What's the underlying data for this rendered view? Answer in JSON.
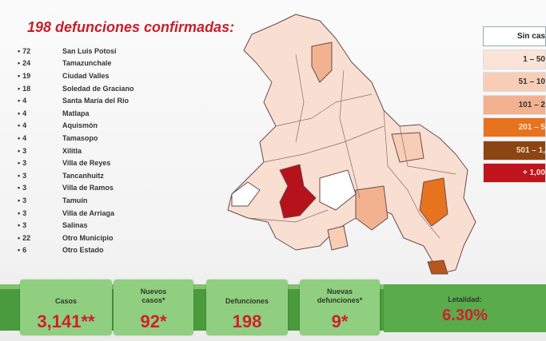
{
  "title": "198 defunciones confirmadas:",
  "deaths_by_municipality": [
    {
      "count": "72",
      "name": "San Luis Potosí"
    },
    {
      "count": "24",
      "name": "Tamazunchale"
    },
    {
      "count": "19",
      "name": "Ciudad Valles"
    },
    {
      "count": "18",
      "name": "Soledad de Graciano"
    },
    {
      "count": "4",
      "name": "Santa María del Río"
    },
    {
      "count": "4",
      "name": "Matlapa"
    },
    {
      "count": "4",
      "name": "Aquismón"
    },
    {
      "count": "4",
      "name": "Tamasopo"
    },
    {
      "count": "3",
      "name": "Xilitla"
    },
    {
      "count": "3",
      "name": "Villa de Reyes"
    },
    {
      "count": "3",
      "name": "Tancanhuitz"
    },
    {
      "count": "3",
      "name": "Villa de Ramos"
    },
    {
      "count": "3",
      "name": "Tamuín"
    },
    {
      "count": "3",
      "name": "Villa de Arriaga"
    },
    {
      "count": "3",
      "name": "Salinas"
    },
    {
      "count": "22",
      "name": "Otro Municipio"
    },
    {
      "count": "6",
      "name": "Otro Estado"
    }
  ],
  "legend": [
    {
      "label": "Sin cas",
      "color": "#ffffff",
      "text": "#222222"
    },
    {
      "label": "1 – 50",
      "color": "#fbe3d8",
      "text": "#333333"
    },
    {
      "label": "51 – 10",
      "color": "#f8cdb6",
      "text": "#333333"
    },
    {
      "label": "101 – 2",
      "color": "#f3b28f",
      "text": "#333333"
    },
    {
      "label": "201 – 5",
      "color": "#e8731f",
      "text": "#ffe7d0"
    },
    {
      "label": "501 – 1,",
      "color": "#8b4513",
      "text": "#f3dcc5"
    },
    {
      "label": "+ 1,00",
      "color": "#c0141c",
      "text": "#ffe0e0"
    }
  ],
  "stats": {
    "casos": {
      "label": "Casos",
      "value": "3,141**"
    },
    "nuevos_casos": {
      "label": "Nuevos casos*",
      "value": "92*"
    },
    "defunciones": {
      "label": "Defunciones",
      "value": "198"
    },
    "nuevas_defunciones": {
      "label": "Nuevas defunciones*",
      "value": "9*"
    },
    "letalidad": {
      "label": "Letalidad:",
      "value": "6.30%"
    }
  }
}
